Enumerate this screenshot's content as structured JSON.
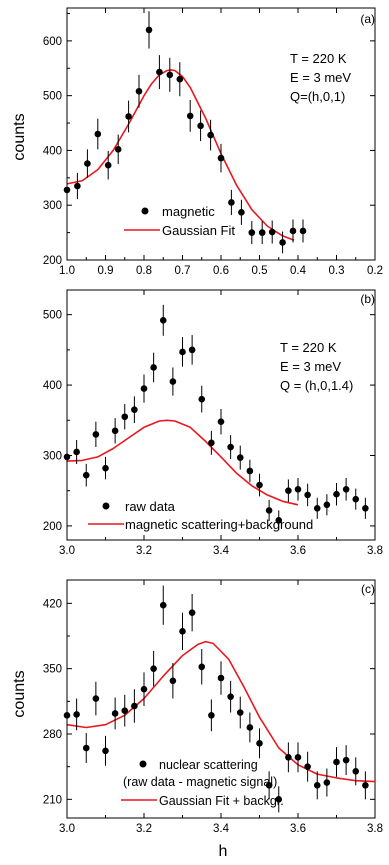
{
  "figure": {
    "xlabel_shared": "h"
  },
  "chart_data": [
    {
      "type": "scatter",
      "panel_label": "(a)",
      "ylabel": "counts",
      "xlim": [
        1.0,
        0.2
      ],
      "ylim": [
        200,
        660
      ],
      "xticks": [
        1.0,
        0.9,
        0.8,
        0.7,
        0.6,
        0.5,
        0.4,
        0.3,
        0.2
      ],
      "xtick_labels": [
        "1.0",
        "0.9",
        "0.8",
        "0.7",
        "0.6",
        "0.5",
        "0.4",
        "0.3",
        "0.2"
      ],
      "yticks": [
        200,
        300,
        400,
        500,
        600
      ],
      "ytick_labels": [
        "200",
        "300",
        "400",
        "500",
        "600"
      ],
      "annotations": [
        "T = 220 K",
        "E = 3 meV",
        "Q=(h,0,1)"
      ],
      "series": [
        {
          "name": "magnetic",
          "kind": "points_errorbars",
          "color": "#000000",
          "x": [
            1.0,
            0.973,
            0.947,
            0.92,
            0.893,
            0.867,
            0.84,
            0.813,
            0.787,
            0.76,
            0.733,
            0.707,
            0.68,
            0.653,
            0.627,
            0.6,
            0.573,
            0.547,
            0.52,
            0.493,
            0.467,
            0.44,
            0.413,
            0.387
          ],
          "y": [
            328,
            335,
            376,
            430,
            373,
            402,
            462,
            508,
            620,
            543,
            538,
            530,
            463,
            445,
            428,
            386,
            305,
            287,
            250,
            250,
            251,
            232,
            253,
            253
          ],
          "err": [
            24,
            24,
            26,
            28,
            26,
            27,
            29,
            30,
            34,
            31,
            31,
            31,
            29,
            28,
            28,
            26,
            23,
            23,
            21,
            21,
            21,
            20,
            21,
            21
          ]
        },
        {
          "name": "Gaussian Fit",
          "kind": "line",
          "color": "#e8191e",
          "x": [
            1.0,
            0.96,
            0.92,
            0.88,
            0.84,
            0.8,
            0.78,
            0.76,
            0.74,
            0.73,
            0.72,
            0.7,
            0.68,
            0.64,
            0.6,
            0.56,
            0.52,
            0.48,
            0.44,
            0.41
          ],
          "y": [
            339,
            345,
            365,
            400,
            448,
            500,
            522,
            538,
            546,
            547,
            546,
            535,
            515,
            459,
            394,
            337,
            292,
            262,
            244,
            236
          ]
        }
      ]
    },
    {
      "type": "scatter",
      "panel_label": "(b)",
      "ylabel": "",
      "xlim": [
        3.0,
        3.8
      ],
      "ylim": [
        180,
        535
      ],
      "xticks": [
        3.0,
        3.2,
        3.4,
        3.6,
        3.8
      ],
      "xtick_labels": [
        "3.0",
        "3.2",
        "3.4",
        "3.6",
        "3.8"
      ],
      "yticks": [
        200,
        300,
        400,
        500
      ],
      "ytick_labels": [
        "200",
        "300",
        "400",
        "500"
      ],
      "annotations": [
        "T = 220 K",
        "E = 3 meV",
        "Q = (h,0,1.4)"
      ],
      "series": [
        {
          "name": "raw data",
          "kind": "points_errorbars",
          "color": "#000000",
          "x": [
            3.0,
            3.025,
            3.05,
            3.075,
            3.1,
            3.125,
            3.15,
            3.175,
            3.2,
            3.225,
            3.25,
            3.275,
            3.3,
            3.325,
            3.35,
            3.375,
            3.4,
            3.425,
            3.45,
            3.475,
            3.5,
            3.525,
            3.55,
            3.575,
            3.6,
            3.625,
            3.65,
            3.675,
            3.7,
            3.725,
            3.75,
            3.775
          ],
          "y": [
            298,
            305,
            272,
            330,
            282,
            335,
            355,
            365,
            395,
            425,
            492,
            405,
            447,
            450,
            380,
            318,
            348,
            312,
            297,
            278,
            258,
            222,
            208,
            250,
            252,
            244,
            225,
            230,
            245,
            252,
            238,
            225
          ],
          "err": [
            17,
            17,
            16,
            18,
            16,
            18,
            18,
            19,
            20,
            21,
            22,
            20,
            21,
            21,
            19,
            17,
            18,
            17,
            17,
            16,
            16,
            15,
            14,
            16,
            16,
            16,
            15,
            15,
            16,
            16,
            15,
            15
          ]
        },
        {
          "name": "magnetic scattering+background",
          "kind": "line",
          "color": "#e8191e",
          "x": [
            3.0,
            3.04,
            3.08,
            3.12,
            3.16,
            3.2,
            3.24,
            3.26,
            3.28,
            3.32,
            3.36,
            3.4,
            3.44,
            3.48,
            3.52,
            3.56,
            3.6
          ],
          "y": [
            292,
            293,
            298,
            310,
            325,
            340,
            349,
            350,
            349,
            340,
            320,
            298,
            275,
            257,
            244,
            235,
            230
          ]
        }
      ]
    },
    {
      "type": "scatter",
      "panel_label": "(c)",
      "ylabel": "counts",
      "xlim": [
        3.0,
        3.8
      ],
      "ylim": [
        190,
        445
      ],
      "xticks": [
        3.0,
        3.2,
        3.4,
        3.6,
        3.8
      ],
      "xtick_labels": [
        "3.0",
        "3.2",
        "3.4",
        "3.6",
        "3.8"
      ],
      "yticks": [
        210,
        280,
        350,
        420
      ],
      "ytick_labels": [
        "210",
        "280",
        "350",
        "420"
      ],
      "annotations": [],
      "series": [
        {
          "name": "nuclear scattering\n(raw data - magnetic signal)",
          "kind": "points_errorbars",
          "color": "#000000",
          "x": [
            3.0,
            3.025,
            3.05,
            3.075,
            3.1,
            3.125,
            3.15,
            3.175,
            3.2,
            3.225,
            3.25,
            3.275,
            3.3,
            3.325,
            3.35,
            3.375,
            3.4,
            3.425,
            3.45,
            3.475,
            3.5,
            3.525,
            3.55,
            3.575,
            3.6,
            3.625,
            3.65,
            3.675,
            3.7,
            3.725,
            3.75,
            3.775
          ],
          "y": [
            300,
            301,
            265,
            318,
            262,
            302,
            305,
            310,
            328,
            350,
            418,
            337,
            390,
            410,
            352,
            300,
            340,
            320,
            303,
            287,
            270,
            225,
            210,
            255,
            255,
            245,
            225,
            228,
            250,
            252,
            240,
            225
          ],
          "err": [
            17,
            17,
            16,
            18,
            16,
            17,
            17,
            18,
            18,
            19,
            21,
            19,
            20,
            20,
            19,
            17,
            18,
            17,
            17,
            16,
            16,
            15,
            14,
            16,
            16,
            16,
            15,
            15,
            16,
            16,
            15,
            15
          ]
        },
        {
          "name": "Gaussian Fit + backgr.",
          "kind": "line",
          "color": "#e8191e",
          "x": [
            3.0,
            3.05,
            3.1,
            3.15,
            3.2,
            3.25,
            3.3,
            3.34,
            3.36,
            3.38,
            3.42,
            3.46,
            3.5,
            3.55,
            3.6,
            3.65,
            3.7,
            3.75,
            3.8
          ],
          "y": [
            290,
            287,
            290,
            300,
            318,
            342,
            364,
            376,
            379,
            377,
            360,
            330,
            298,
            265,
            247,
            237,
            233,
            230,
            229
          ]
        }
      ]
    }
  ]
}
